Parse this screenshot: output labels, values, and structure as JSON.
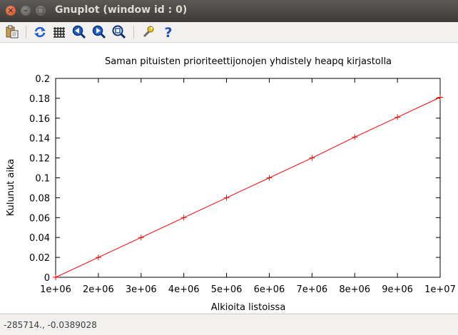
{
  "window": {
    "title": "Gnuplot (window id : 0)"
  },
  "toolbar": {
    "buttons": [
      {
        "name": "copy-to-clipboard",
        "icon": "clipboard-icon"
      },
      {
        "name": "replot",
        "icon": "replot-icon"
      },
      {
        "name": "toggle-grid",
        "icon": "grid-icon"
      },
      {
        "name": "previous-zoom",
        "icon": "zoom-back-icon"
      },
      {
        "name": "next-zoom",
        "icon": "zoom-forward-icon"
      },
      {
        "name": "autoscale",
        "icon": "autoscale-icon"
      },
      {
        "name": "preferences",
        "icon": "wrench-icon"
      },
      {
        "name": "help",
        "icon": "help-icon"
      }
    ]
  },
  "status": {
    "coordinates": "-285714., -0.0389028"
  },
  "chart_data": {
    "type": "line",
    "title": "Saman pituisten prioriteettijonojen yhdistely heapq kirjastolla",
    "xlabel": "Alkioita listoissa",
    "ylabel": "Kulunut aika",
    "xlim": [
      1000000,
      10000000
    ],
    "ylim": [
      0,
      0.2
    ],
    "x_ticks": [
      1000000,
      2000000,
      3000000,
      4000000,
      5000000,
      6000000,
      7000000,
      8000000,
      9000000,
      10000000
    ],
    "x_tick_labels": [
      "1e+06",
      "2e+06",
      "3e+06",
      "4e+06",
      "5e+06",
      "6e+06",
      "7e+06",
      "8e+06",
      "9e+06",
      "1e+07"
    ],
    "y_ticks": [
      0,
      0.02,
      0.04,
      0.06,
      0.08,
      0.1,
      0.12,
      0.14,
      0.16,
      0.18,
      0.2
    ],
    "y_tick_labels": [
      "0",
      "0.02",
      "0.04",
      "0.06",
      "0.08",
      "0.1",
      "0.12",
      "0.14",
      "0.16",
      "0.18",
      "0.2"
    ],
    "series": [
      {
        "name": "",
        "color": "#ff0000",
        "marker": "+",
        "x": [
          1000000,
          2000000,
          3000000,
          4000000,
          5000000,
          6000000,
          7000000,
          8000000,
          9000000,
          10000000
        ],
        "y": [
          0.0,
          0.02,
          0.04,
          0.06,
          0.08,
          0.1,
          0.12,
          0.141,
          0.161,
          0.181
        ]
      }
    ]
  }
}
